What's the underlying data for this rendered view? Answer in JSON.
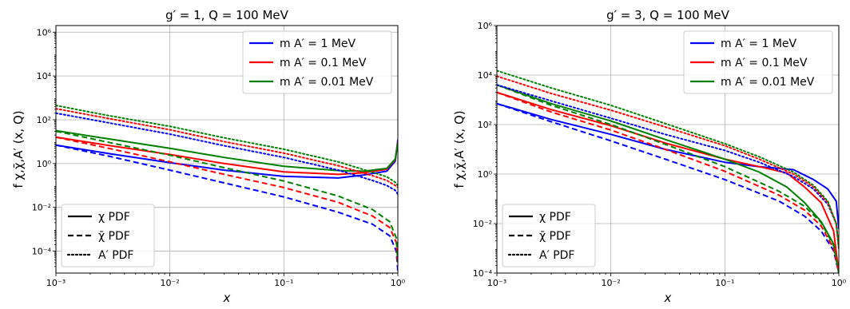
{
  "chart_data": [
    {
      "type": "line",
      "title": "g′ = 1, Q = 100 MeV",
      "xlabel": "x",
      "ylabel": "f χ,χ̄,A′ (x, Q)",
      "xscale": "log",
      "yscale": "log",
      "xlim": [
        0.001,
        1
      ],
      "ylim": [
        1e-05,
        2000000
      ],
      "grid": true,
      "x_ticks": [
        "10⁻³",
        "10⁻²",
        "10⁻¹",
        "10⁰"
      ],
      "y_ticks": [
        {
          "value": 0.0001,
          "label": "10⁻⁴"
        },
        {
          "value": 0.01,
          "label": "10⁻²"
        },
        {
          "value": 1,
          "label": "10⁰"
        },
        {
          "value": 100,
          "label": "10²"
        },
        {
          "value": 10000,
          "label": "10⁴"
        },
        {
          "value": 1000000,
          "label": "10⁶"
        }
      ],
      "color_legend": {
        "placement": "top-right",
        "entries": [
          "m A′ = 1 MeV",
          "m A′ = 0.1 MeV",
          "m A′ = 0.01 MeV"
        ]
      },
      "style_legend": {
        "placement": "lower-left",
        "entries": [
          "χ PDF",
          "χ̄ PDF",
          "A′ PDF"
        ]
      },
      "series": [
        {
          "name": "χ PDF, m A′ = 1 MeV",
          "color": "#0000ff",
          "dash": "solid",
          "points": [
            [
              0.001,
              7
            ],
            [
              0.003,
              2.8
            ],
            [
              0.01,
              1.1
            ],
            [
              0.03,
              0.5
            ],
            [
              0.1,
              0.26
            ],
            [
              0.3,
              0.22
            ],
            [
              0.5,
              0.3
            ],
            [
              0.8,
              0.45
            ],
            [
              0.95,
              1.3
            ],
            [
              1.0,
              12
            ]
          ]
        },
        {
          "name": "χ PDF, m A′ = 0.1 MeV",
          "color": "#ff0000",
          "dash": "solid",
          "points": [
            [
              0.001,
              16
            ],
            [
              0.003,
              6.5
            ],
            [
              0.01,
              2.6
            ],
            [
              0.03,
              1.0
            ],
            [
              0.1,
              0.42
            ],
            [
              0.3,
              0.32
            ],
            [
              0.5,
              0.38
            ],
            [
              0.8,
              0.55
            ],
            [
              0.95,
              1.5
            ],
            [
              1.0,
              10
            ]
          ]
        },
        {
          "name": "χ PDF, m A′ = 0.01 MeV",
          "color": "#008000",
          "dash": "solid",
          "points": [
            [
              0.001,
              32
            ],
            [
              0.003,
              13
            ],
            [
              0.01,
              5
            ],
            [
              0.03,
              1.9
            ],
            [
              0.1,
              0.75
            ],
            [
              0.3,
              0.48
            ],
            [
              0.5,
              0.45
            ],
            [
              0.8,
              0.6
            ],
            [
              0.95,
              1.6
            ],
            [
              1.0,
              9
            ]
          ]
        },
        {
          "name": "χ̄ PDF, m A′ = 1 MeV",
          "color": "#0000ff",
          "dash": "dashed",
          "points": [
            [
              0.001,
              7
            ],
            [
              0.003,
              2.1
            ],
            [
              0.01,
              0.5
            ],
            [
              0.03,
              0.13
            ],
            [
              0.1,
              0.03
            ],
            [
              0.3,
              0.006
            ],
            [
              0.6,
              0.0017
            ],
            [
              0.85,
              0.0005
            ],
            [
              0.97,
              0.0001
            ],
            [
              1.0,
              1.2e-05
            ]
          ]
        },
        {
          "name": "χ̄ PDF, m A′ = 0.1 MeV",
          "color": "#ff0000",
          "dash": "dashed",
          "points": [
            [
              0.001,
              16
            ],
            [
              0.003,
              4.8
            ],
            [
              0.01,
              1.2
            ],
            [
              0.03,
              0.32
            ],
            [
              0.1,
              0.08
            ],
            [
              0.3,
              0.017
            ],
            [
              0.6,
              0.004
            ],
            [
              0.85,
              0.0012
            ],
            [
              0.97,
              0.00025
            ],
            [
              1.0,
              2e-05
            ]
          ]
        },
        {
          "name": "χ̄ PDF, m A′ = 0.01 MeV",
          "color": "#008000",
          "dash": "dashed",
          "points": [
            [
              0.001,
              30
            ],
            [
              0.003,
              9
            ],
            [
              0.01,
              2.4
            ],
            [
              0.03,
              0.65
            ],
            [
              0.1,
              0.16
            ],
            [
              0.3,
              0.033
            ],
            [
              0.6,
              0.008
            ],
            [
              0.85,
              0.0022
            ],
            [
              0.97,
              0.0004
            ],
            [
              1.0,
              3e-05
            ]
          ]
        },
        {
          "name": "A′ PDF, m A′ = 1 MeV",
          "color": "#0000ff",
          "dash": "dotted",
          "points": [
            [
              0.001,
              200
            ],
            [
              0.003,
              70
            ],
            [
              0.01,
              22
            ],
            [
              0.03,
              6.5
            ],
            [
              0.1,
              1.9
            ],
            [
              0.3,
              0.5
            ],
            [
              0.6,
              0.17
            ],
            [
              0.8,
              0.1
            ],
            [
              0.95,
              0.06
            ],
            [
              1.0,
              0.04
            ]
          ]
        },
        {
          "name": "A′ PDF, m A′ = 0.1 MeV",
          "color": "#ff0000",
          "dash": "dotted",
          "points": [
            [
              0.001,
              320
            ],
            [
              0.003,
              110
            ],
            [
              0.01,
              35
            ],
            [
              0.03,
              10
            ],
            [
              0.1,
              3
            ],
            [
              0.3,
              0.8
            ],
            [
              0.6,
              0.28
            ],
            [
              0.8,
              0.17
            ],
            [
              0.95,
              0.1
            ],
            [
              1.0,
              0.08
            ]
          ]
        },
        {
          "name": "A′ PDF, m A′ = 0.01 MeV",
          "color": "#008000",
          "dash": "dotted",
          "points": [
            [
              0.001,
              450
            ],
            [
              0.003,
              150
            ],
            [
              0.01,
              50
            ],
            [
              0.03,
              15
            ],
            [
              0.1,
              4.5
            ],
            [
              0.3,
              1.2
            ],
            [
              0.6,
              0.4
            ],
            [
              0.8,
              0.25
            ],
            [
              0.95,
              0.14
            ],
            [
              1.0,
              0.1
            ]
          ]
        }
      ]
    },
    {
      "type": "line",
      "title": "g′ = 3, Q = 100 MeV",
      "xlabel": "x",
      "ylabel": "f χ,χ̄,A′ (x, Q)",
      "xscale": "log",
      "yscale": "log",
      "xlim": [
        0.001,
        1
      ],
      "ylim": [
        0.0001,
        1000000
      ],
      "grid": true,
      "x_ticks": [
        "10⁻³",
        "10⁻²",
        "10⁻¹",
        "10⁰"
      ],
      "y_ticks": [
        {
          "value": 0.0001,
          "label": "10⁻⁴"
        },
        {
          "value": 0.01,
          "label": "10⁻²"
        },
        {
          "value": 1,
          "label": "10⁰"
        },
        {
          "value": 100,
          "label": "10²"
        },
        {
          "value": 10000,
          "label": "10⁴"
        },
        {
          "value": 1000000,
          "label": "10⁶"
        }
      ],
      "color_legend": {
        "placement": "top-right",
        "entries": [
          "m A′ = 1 MeV",
          "m A′ = 0.1 MeV",
          "m A′ = 0.01 MeV"
        ]
      },
      "style_legend": {
        "placement": "lower-left",
        "entries": [
          "χ PDF",
          "χ̄ PDF",
          "A′ PDF"
        ]
      },
      "series": [
        {
          "name": "χ PDF, m A′ = 1 MeV",
          "color": "#0000ff",
          "dash": "solid",
          "points": [
            [
              0.001,
              700
            ],
            [
              0.003,
              160
            ],
            [
              0.01,
              40
            ],
            [
              0.03,
              10
            ],
            [
              0.1,
              3
            ],
            [
              0.2,
              2
            ],
            [
              0.4,
              1.5
            ],
            [
              0.6,
              0.6
            ],
            [
              0.8,
              0.25
            ],
            [
              0.95,
              0.08
            ],
            [
              1.0,
              0.006
            ]
          ]
        },
        {
          "name": "χ PDF, m A′ = 0.1 MeV",
          "color": "#ff0000",
          "dash": "solid",
          "points": [
            [
              0.001,
              2000
            ],
            [
              0.003,
              400
            ],
            [
              0.01,
              90
            ],
            [
              0.03,
              18
            ],
            [
              0.1,
              4
            ],
            [
              0.2,
              2
            ],
            [
              0.35,
              1.1
            ],
            [
              0.5,
              0.3
            ],
            [
              0.7,
              0.07
            ],
            [
              0.9,
              0.005
            ],
            [
              1.0,
              0.0001
            ]
          ]
        },
        {
          "name": "χ PDF, m A′ = 0.01 MeV",
          "color": "#008000",
          "dash": "solid",
          "points": [
            [
              0.001,
              4000
            ],
            [
              0.003,
              700
            ],
            [
              0.01,
              140
            ],
            [
              0.03,
              25
            ],
            [
              0.1,
              4
            ],
            [
              0.2,
              1.2
            ],
            [
              0.35,
              0.3
            ],
            [
              0.5,
              0.07
            ],
            [
              0.7,
              0.012
            ],
            [
              0.9,
              0.0015
            ],
            [
              1.0,
              0.0001
            ]
          ]
        },
        {
          "name": "χ̄ PDF, m A′ = 1 MeV",
          "color": "#0000ff",
          "dash": "dashed",
          "points": [
            [
              0.001,
              700
            ],
            [
              0.003,
              130
            ],
            [
              0.01,
              22
            ],
            [
              0.03,
              4
            ],
            [
              0.1,
              0.6
            ],
            [
              0.3,
              0.08
            ],
            [
              0.5,
              0.02
            ],
            [
              0.7,
              0.005
            ],
            [
              0.9,
              0.0008
            ],
            [
              1.0,
              0.0001
            ]
          ]
        },
        {
          "name": "χ̄ PDF, m A′ = 0.1 MeV",
          "color": "#ff0000",
          "dash": "dashed",
          "points": [
            [
              0.001,
              2000
            ],
            [
              0.003,
              320
            ],
            [
              0.01,
              60
            ],
            [
              0.03,
              10
            ],
            [
              0.1,
              1.3
            ],
            [
              0.3,
              0.14
            ],
            [
              0.5,
              0.035
            ],
            [
              0.7,
              0.008
            ],
            [
              0.9,
              0.001
            ],
            [
              1.0,
              0.0001
            ]
          ]
        },
        {
          "name": "χ̄ PDF, m A′ = 0.01 MeV",
          "color": "#008000",
          "dash": "dashed",
          "points": [
            [
              0.001,
              4000
            ],
            [
              0.003,
              600
            ],
            [
              0.01,
              100
            ],
            [
              0.03,
              16
            ],
            [
              0.1,
              2
            ],
            [
              0.3,
              0.2
            ],
            [
              0.5,
              0.05
            ],
            [
              0.7,
              0.011
            ],
            [
              0.9,
              0.0013
            ],
            [
              1.0,
              0.0001
            ]
          ]
        },
        {
          "name": "A′ PDF, m A′ = 1 MeV",
          "color": "#0000ff",
          "dash": "dotted",
          "points": [
            [
              0.001,
              4000
            ],
            [
              0.003,
              900
            ],
            [
              0.01,
              180
            ],
            [
              0.03,
              40
            ],
            [
              0.1,
              9
            ],
            [
              0.2,
              3
            ],
            [
              0.4,
              0.8
            ],
            [
              0.6,
              0.25
            ],
            [
              0.8,
              0.06
            ],
            [
              0.95,
              0.01
            ],
            [
              1.0,
              0.001
            ]
          ]
        },
        {
          "name": "A′ PDF, m A′ = 0.1 MeV",
          "color": "#ff0000",
          "dash": "dotted",
          "points": [
            [
              0.001,
              9000
            ],
            [
              0.003,
              1800
            ],
            [
              0.01,
              380
            ],
            [
              0.03,
              80
            ],
            [
              0.1,
              14
            ],
            [
              0.2,
              4
            ],
            [
              0.4,
              1
            ],
            [
              0.6,
              0.3
            ],
            [
              0.8,
              0.07
            ],
            [
              0.95,
              0.01
            ],
            [
              1.0,
              0.001
            ]
          ]
        },
        {
          "name": "A′ PDF, m A′ = 0.01 MeV",
          "color": "#008000",
          "dash": "dotted",
          "points": [
            [
              0.001,
              15000
            ],
            [
              0.003,
              3000
            ],
            [
              0.01,
              600
            ],
            [
              0.03,
              110
            ],
            [
              0.1,
              17
            ],
            [
              0.2,
              5
            ],
            [
              0.4,
              1.2
            ],
            [
              0.6,
              0.35
            ],
            [
              0.8,
              0.08
            ],
            [
              0.95,
              0.01
            ],
            [
              1.0,
              0.001
            ]
          ]
        }
      ]
    }
  ]
}
